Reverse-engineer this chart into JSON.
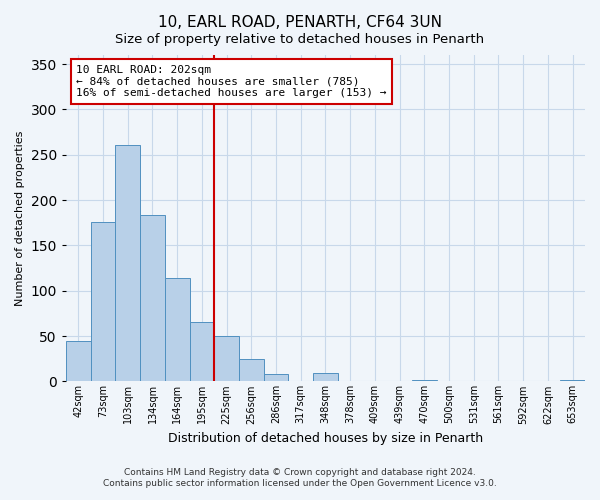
{
  "title": "10, EARL ROAD, PENARTH, CF64 3UN",
  "subtitle": "Size of property relative to detached houses in Penarth",
  "xlabel": "Distribution of detached houses by size in Penarth",
  "ylabel": "Number of detached properties",
  "bar_labels": [
    "42sqm",
    "73sqm",
    "103sqm",
    "134sqm",
    "164sqm",
    "195sqm",
    "225sqm",
    "256sqm",
    "286sqm",
    "317sqm",
    "348sqm",
    "378sqm",
    "409sqm",
    "439sqm",
    "470sqm",
    "500sqm",
    "531sqm",
    "561sqm",
    "592sqm",
    "622sqm",
    "653sqm"
  ],
  "bar_values": [
    45,
    176,
    261,
    183,
    114,
    65,
    50,
    25,
    8,
    0,
    9,
    0,
    0,
    0,
    2,
    0,
    0,
    0,
    0,
    0,
    2
  ],
  "bar_color": "#b8d0e8",
  "bar_edge_color": "#5090c0",
  "vline_x_index": 5.5,
  "vline_color": "#cc0000",
  "annotation_line1": "10 EARL ROAD: 202sqm",
  "annotation_line2": "← 84% of detached houses are smaller (785)",
  "annotation_line3": "16% of semi-detached houses are larger (153) →",
  "annotation_box_color": "#ffffff",
  "annotation_box_edge": "#cc0000",
  "ylim": [
    0,
    360
  ],
  "yticks": [
    0,
    50,
    100,
    150,
    200,
    250,
    300,
    350
  ],
  "footer_line1": "Contains HM Land Registry data © Crown copyright and database right 2024.",
  "footer_line2": "Contains public sector information licensed under the Open Government Licence v3.0.",
  "bg_color": "#f0f5fa",
  "plot_bg_color": "#f0f5fa",
  "grid_color": "#c8d8ea",
  "title_fontsize": 11,
  "subtitle_fontsize": 9.5,
  "tick_fontsize": 7,
  "ylabel_fontsize": 8,
  "xlabel_fontsize": 9
}
